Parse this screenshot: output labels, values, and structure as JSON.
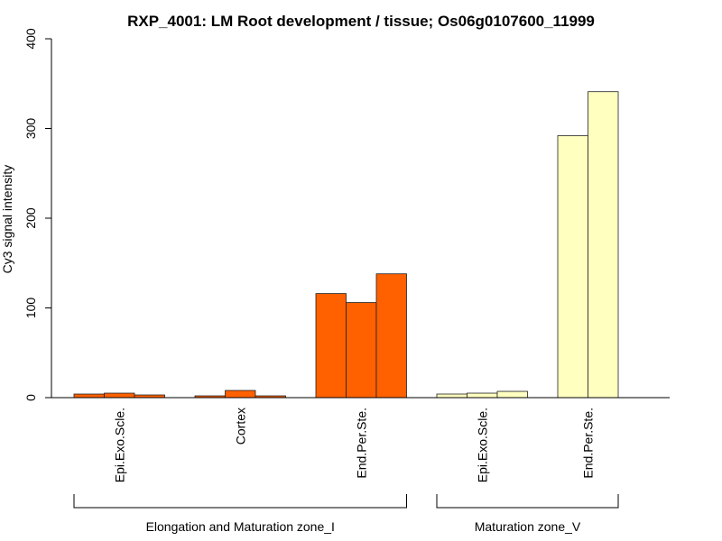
{
  "chart_data": {
    "type": "bar",
    "title": "RXP_4001: LM Root development / tissue; Os06g0107600_11999",
    "ylabel": "Cy3 signal intensity",
    "xlabel": "",
    "ylim": [
      0,
      400
    ],
    "yticks": [
      0,
      100,
      200,
      300,
      400
    ],
    "categories": [
      {
        "label": "Epi.Exo.Scle.",
        "group": 0,
        "color": "#ff6000",
        "values": [
          4,
          5,
          3
        ]
      },
      {
        "label": "Cortex",
        "group": 0,
        "color": "#ff6000",
        "values": [
          2,
          8,
          2
        ]
      },
      {
        "label": "End.Per.Ste.",
        "group": 0,
        "color": "#ff6000",
        "values": [
          116,
          106,
          138
        ]
      },
      {
        "label": "Epi.Exo.Scle.",
        "group": 1,
        "color": "#ffffc0",
        "values": [
          4,
          5,
          7
        ]
      },
      {
        "label": "End.Per.Ste.",
        "group": 1,
        "color": "#ffffc0",
        "values": [
          292,
          341
        ]
      }
    ],
    "groups": [
      {
        "label": "Elongation and Maturation zone_I"
      },
      {
        "label": "Maturation zone_V"
      }
    ]
  }
}
